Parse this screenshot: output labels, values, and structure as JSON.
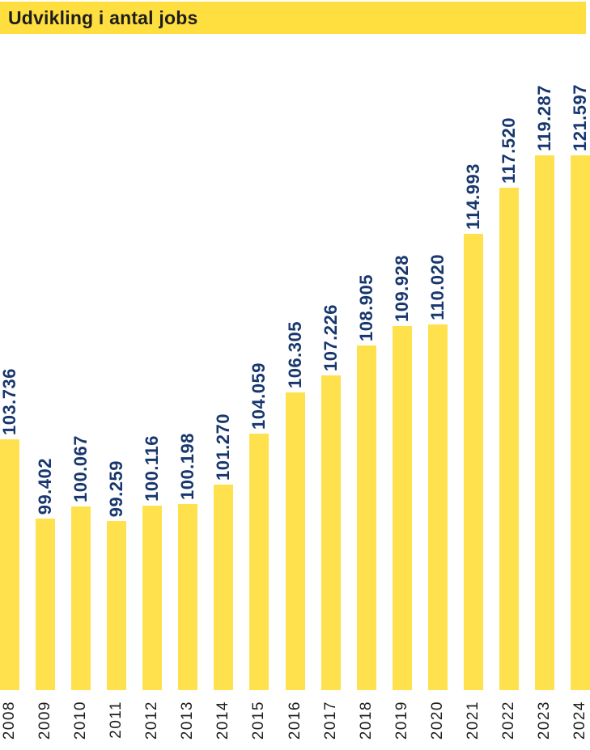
{
  "header": {
    "title": "Udvikling i antal jobs"
  },
  "colors": {
    "background": "#ffffff",
    "header_bg": "#ffdf3f",
    "header_text": "#1d1d1b",
    "bar_fill": "#ffe14e",
    "value_label_text": "#17376e",
    "year_label_text": "#1d1d1b"
  },
  "chart_data": {
    "type": "bar",
    "title": "Udvikling i antal jobs",
    "categories": [
      "2008",
      "2009",
      "2010",
      "2011",
      "2012",
      "2013",
      "2014",
      "2015",
      "2016",
      "2017",
      "2018",
      "2019",
      "2020",
      "2021",
      "2022",
      "2023",
      "2024"
    ],
    "values": [
      103736,
      99402,
      100067,
      99259,
      100116,
      100198,
      101270,
      104059,
      106305,
      107226,
      108905,
      109928,
      110020,
      114993,
      117520,
      119287,
      121597
    ],
    "value_labels": [
      "103.736",
      "99.402",
      "100.067",
      "99.259",
      "100.116",
      "100.198",
      "101.270",
      "104.059",
      "106.305",
      "107.226",
      "108.905",
      "109.928",
      "110.020",
      "114.993",
      "117.520",
      "119.287",
      "121.597"
    ],
    "xlabel": "",
    "ylabel": "",
    "ylim": [
      90000,
      119300
    ],
    "bars_clipped_at_ylim_max": true,
    "grid": false,
    "legend": false,
    "bar_color": "#ffe14e",
    "value_label_rotation_deg": 90,
    "tick_label_rotation_deg": 90
  }
}
